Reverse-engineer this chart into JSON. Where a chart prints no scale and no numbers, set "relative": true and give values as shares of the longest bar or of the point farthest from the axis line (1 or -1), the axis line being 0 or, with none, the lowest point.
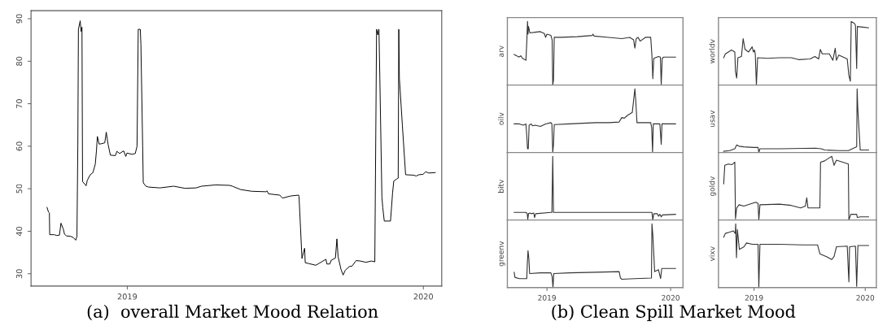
{
  "chart_data": [
    {
      "type": "line",
      "annotations": [
        "(a)  overall Market Mood Relation"
      ],
      "xlim": [
        2018.675,
        2020.062
      ],
      "ylim": [
        27.1,
        91.9
      ],
      "xticks": [
        2019,
        2020
      ],
      "yticks": [
        30,
        40,
        50,
        60,
        70,
        80,
        90
      ],
      "grid": false,
      "x": [
        2018.729,
        2018.734,
        2018.737,
        2018.738,
        2018.753,
        2018.762,
        2018.771,
        2018.776,
        2018.784,
        2018.788,
        2018.795,
        2018.809,
        2018.818,
        2018.826,
        2018.83,
        2018.833,
        2018.835,
        2018.841,
        2018.844,
        2018.847,
        2018.849,
        2018.861,
        2018.865,
        2018.875,
        2018.884,
        2018.892,
        2018.896,
        2018.899,
        2018.905,
        2018.913,
        2018.924,
        2018.929,
        2018.935,
        2018.943,
        2018.96,
        2018.965,
        2018.974,
        2018.988,
        2018.995,
        2018.999,
        2019.016,
        2019.027,
        2019.033,
        2019.037,
        2019.044,
        2019.046,
        2019.052,
        2019.054,
        2019.063,
        2019.072,
        2019.11,
        2019.157,
        2019.195,
        2019.232,
        2019.251,
        2019.298,
        2019.345,
        2019.355,
        2019.383,
        2019.421,
        2019.468,
        2019.472,
        2019.477,
        2019.515,
        2019.524,
        2019.552,
        2019.579,
        2019.58,
        2019.59,
        2019.595,
        2019.599,
        2019.601,
        2019.613,
        2019.637,
        2019.656,
        2019.671,
        2019.674,
        2019.684,
        2019.689,
        2019.703,
        2019.708,
        2019.712,
        2019.722,
        2019.729,
        2019.736,
        2019.75,
        2019.759,
        2019.773,
        2019.787,
        2019.806,
        2019.825,
        2019.836,
        2019.842,
        2019.846,
        2019.849,
        2019.85,
        2019.853,
        2019.86,
        2019.863,
        2019.868,
        2019.889,
        2019.896,
        2019.9,
        2019.91,
        2019.915,
        2019.917,
        2019.919,
        2019.929,
        2019.94,
        2019.966,
        2019.976,
        2019.985,
        2019.999,
        2020.008,
        2020.018,
        2020.04
      ],
      "series": [
        {
          "color": "#000000",
          "values": [
            45.6,
            44.5,
            44.3,
            39.2,
            39.2,
            39.0,
            39.1,
            41.9,
            40.5,
            39.3,
            38.9,
            38.8,
            38.5,
            37.9,
            38.8,
            60,
            87.5,
            89.5,
            87,
            88,
            51.7,
            50.7,
            52,
            53.3,
            53.8,
            55.8,
            59,
            62.3,
            60.5,
            60.6,
            60.8,
            63.3,
            60.5,
            57.9,
            57.8,
            58.8,
            58.3,
            58.9,
            57.6,
            58.4,
            58.1,
            58.3,
            60,
            87.5,
            87.5,
            84,
            60,
            51.4,
            50.6,
            50.4,
            50.2,
            50.6,
            50.1,
            50.2,
            50.6,
            50.9,
            50.8,
            50.6,
            49.8,
            49.4,
            49.3,
            49.5,
            48.8,
            48.5,
            47.8,
            48.3,
            48.5,
            48.2,
            33.6,
            35,
            36,
            32.6,
            32.4,
            32.0,
            32.8,
            33.4,
            32.3,
            32.3,
            33.2,
            33.7,
            38.2,
            34,
            31,
            29.7,
            30.8,
            31.7,
            31.8,
            33.1,
            33,
            32.7,
            33,
            32.8,
            87.5,
            86.2,
            87.5,
            87.5,
            76,
            48,
            45.5,
            42.4,
            42.4,
            49,
            51.8,
            52.3,
            52.5,
            87.5,
            76,
            65,
            53.3,
            53.2,
            53.0,
            53.3,
            53.4,
            54.0,
            53.7,
            53.8
          ]
        }
      ]
    },
    {
      "type": "line",
      "ylabel": "arv",
      "relative": true,
      "xlim": [
        2018.68,
        2020.1
      ],
      "xticks": [
        2019,
        2020
      ],
      "tick_labels": false,
      "annotations": [
        "(b) Clean Spill Market Mood"
      ],
      "x": [
        2018.735,
        2018.756,
        2018.773,
        2018.788,
        2018.803,
        2018.83,
        2018.837,
        2018.843,
        2018.847,
        2018.851,
        2018.862,
        2018.904,
        2018.947,
        2018.979,
        2018.989,
        2019.0,
        2019.032,
        2019.042,
        2019.047,
        2019.053,
        2019.059,
        2019.117,
        2019.244,
        2019.367,
        2019.372,
        2019.382,
        2019.499,
        2019.605,
        2019.669,
        2019.701,
        2019.711,
        2019.722,
        2019.737,
        2019.754,
        2019.796,
        2019.839,
        2019.849,
        2019.856,
        2019.864,
        2019.902,
        2019.917,
        2019.924,
        2019.932,
        2019.945,
        2019.977,
        2020.04
      ],
      "series": [
        {
          "color": "#333333",
          "values": [
            0.48,
            0.46,
            0.44,
            0.46,
            0.42,
            0.39,
            0.67,
            1,
            0.8,
            0.92,
            0.82,
            0.83,
            0.84,
            0.81,
            0.75,
            0.8,
            0.78,
            0.71,
            0,
            0.08,
            0.75,
            0.75,
            0.76,
            0.78,
            0.8,
            0.77,
            0.75,
            0.73,
            0.75,
            0.71,
            0.58,
            0.73,
            0.75,
            0.69,
            0.75,
            0.75,
            0.46,
            0.1,
            0.42,
            0.45,
            0.44,
            0.01,
            0.42,
            0.44,
            0.44,
            0.44
          ]
        }
      ]
    },
    {
      "type": "line",
      "ylabel": "oilv",
      "relative": true,
      "xlim": [
        2018.68,
        2020.1
      ],
      "xticks": [
        2019,
        2020
      ],
      "tick_labels": false,
      "x": [
        2018.735,
        2018.777,
        2018.809,
        2018.83,
        2018.837,
        2018.843,
        2018.849,
        2018.856,
        2018.873,
        2018.883,
        2018.904,
        2018.947,
        2018.989,
        2019.032,
        2019.04,
        2019.047,
        2019.053,
        2019.059,
        2019.18,
        2019.393,
        2019.499,
        2019.584,
        2019.605,
        2019.626,
        2019.648,
        2019.69,
        2019.711,
        2019.718,
        2019.728,
        2019.839,
        2019.847,
        2019.854,
        2019.86,
        2019.913,
        2019.924,
        2019.93,
        2020.04
      ],
      "series": [
        {
          "color": "#333333",
          "values": [
            0.45,
            0.45,
            0.43,
            0.45,
            0.26,
            0.06,
            0.06,
            0.43,
            0.45,
            0.42,
            0.43,
            0.41,
            0.45,
            0.47,
            0.45,
            0,
            0.13,
            0.44,
            0.45,
            0.47,
            0.47,
            0.48,
            0.55,
            0.54,
            0.58,
            0.63,
            1,
            0.82,
            0.47,
            0.47,
            0.39,
            0,
            0.45,
            0.45,
            0.13,
            0.45,
            0.45
          ]
        }
      ]
    },
    {
      "type": "line",
      "ylabel": "bitv",
      "relative": true,
      "xlim": [
        2018.68,
        2020.1
      ],
      "xticks": [
        2019,
        2020
      ],
      "tick_labels": false,
      "x": [
        2018.735,
        2018.83,
        2018.841,
        2018.845,
        2018.851,
        2018.862,
        2018.873,
        2018.894,
        2018.9,
        2018.909,
        2019.032,
        2019.04,
        2019.047,
        2019.053,
        2019.287,
        2019.711,
        2019.849,
        2019.856,
        2019.864,
        2019.892,
        2019.902,
        2019.913,
        2019.924,
        2019.934,
        2020.04
      ],
      "series": [
        {
          "color": "#333333",
          "values": [
            0.12,
            0.12,
            0.1,
            0.01,
            0.1,
            0.11,
            0.1,
            0.11,
            0.04,
            0.1,
            0.12,
            0.12,
            1,
            0.12,
            0.12,
            0.12,
            0.12,
            0,
            0.1,
            0.1,
            0.06,
            0.09,
            0.05,
            0.08,
            0.09
          ]
        }
      ]
    },
    {
      "type": "line",
      "ylabel": "greenv",
      "relative": true,
      "xlim": [
        2018.68,
        2020.1
      ],
      "xticks": [
        2019,
        2020
      ],
      "tick_labels": "x",
      "x": [
        2018.735,
        2018.741,
        2018.777,
        2018.837,
        2018.841,
        2018.847,
        2018.854,
        2018.86,
        2018.947,
        2019.032,
        2019.042,
        2019.049,
        2019.055,
        2019.18,
        2019.393,
        2019.584,
        2019.594,
        2019.605,
        2019.711,
        2019.845,
        2019.849,
        2019.856,
        2019.871,
        2019.902,
        2019.919,
        2019.928,
        2019.966,
        2020.04
      ],
      "series": [
        {
          "color": "#333333",
          "values": [
            0.24,
            0.16,
            0.14,
            0.14,
            0.36,
            0.58,
            0.45,
            0.22,
            0.23,
            0.23,
            0.17,
            0,
            0.22,
            0.23,
            0.24,
            0.25,
            0.15,
            0.13,
            0.14,
            0.15,
            1,
            0.83,
            0.25,
            0.28,
            0.14,
            0.3,
            0.3,
            0.3
          ]
        }
      ]
    },
    {
      "type": "line",
      "ylabel": "worldv",
      "relative": true,
      "xlim": [
        2018.68,
        2020.1
      ],
      "xticks": [
        2019,
        2020
      ],
      "tick_labels": false,
      "x": [
        2018.727,
        2018.742,
        2018.769,
        2018.797,
        2018.827,
        2018.833,
        2018.844,
        2018.855,
        2018.887,
        2018.902,
        2018.919,
        2018.951,
        2018.983,
        2018.994,
        2019.004,
        2019.011,
        2019.021,
        2019.032,
        2019.122,
        2019.229,
        2019.335,
        2019.4,
        2019.504,
        2019.547,
        2019.581,
        2019.596,
        2019.613,
        2019.677,
        2019.709,
        2019.73,
        2019.741,
        2019.762,
        2019.838,
        2019.853,
        2019.866,
        2019.874,
        2019.902,
        2019.912,
        2019.923,
        2019.929,
        2019.976,
        2020.03
      ],
      "series": [
        {
          "color": "#333333",
          "values": [
            0.43,
            0.49,
            0.52,
            0.55,
            0.52,
            0.21,
            0.11,
            0.43,
            0.45,
            0.73,
            0.56,
            0.52,
            0.6,
            0.52,
            0.55,
            0.49,
            0,
            0.43,
            0.42,
            0.43,
            0.43,
            0.4,
            0.41,
            0.45,
            0.41,
            0.56,
            0.49,
            0.49,
            0.39,
            0.58,
            0.39,
            0.47,
            0.41,
            0.15,
            0.06,
            1,
            0.97,
            0.94,
            0.26,
            0.92,
            0.91,
            0.9
          ]
        }
      ]
    },
    {
      "type": "line",
      "ylabel": "usav",
      "relative": true,
      "xlim": [
        2018.68,
        2020.1
      ],
      "xticks": [
        2019,
        2020
      ],
      "tick_labels": false,
      "x": [
        2018.727,
        2018.781,
        2018.827,
        2018.844,
        2018.865,
        2018.908,
        2018.994,
        2019.036,
        2019.043,
        2019.053,
        2019.229,
        2019.551,
        2019.604,
        2019.636,
        2019.763,
        2019.849,
        2019.923,
        2019.927,
        2019.933,
        2019.955,
        2020.03
      ],
      "series": [
        {
          "color": "#333333",
          "values": [
            0.02,
            0.03,
            0.06,
            0.12,
            0.1,
            0.09,
            0.08,
            0.08,
            0,
            0.06,
            0.06,
            0.07,
            0.06,
            0.04,
            0.03,
            0.03,
            0.09,
            1,
            0.69,
            0.04,
            0.04
          ]
        }
      ]
    },
    {
      "type": "line",
      "ylabel": "goldv",
      "relative": true,
      "xlim": [
        2018.68,
        2020.1
      ],
      "xticks": [
        2019,
        2020
      ],
      "tick_labels": false,
      "x": [
        2018.727,
        2018.737,
        2018.769,
        2018.801,
        2018.827,
        2018.833,
        2018.844,
        2018.865,
        2018.908,
        2019.015,
        2019.036,
        2019.043,
        2019.053,
        2019.229,
        2019.335,
        2019.419,
        2019.462,
        2019.474,
        2019.485,
        2019.592,
        2019.598,
        2019.635,
        2019.688,
        2019.699,
        2019.72,
        2019.741,
        2019.848,
        2019.853,
        2019.87,
        2019.923,
        2019.929,
        2019.955,
        2020.03
      ],
      "series": [
        {
          "color": "#333333",
          "values": [
            0.57,
            0.86,
            0.88,
            0.87,
            0.91,
            0.02,
            0.19,
            0.24,
            0.22,
            0.28,
            0.26,
            0,
            0.24,
            0.25,
            0.23,
            0.19,
            0.22,
            0.35,
            0.19,
            0.19,
            0.91,
            0.93,
            0.99,
            1,
            0.86,
            0.94,
            0.88,
            0,
            0.09,
            0.09,
            0.04,
            0.05,
            0.05
          ]
        }
      ]
    },
    {
      "type": "line",
      "ylabel": "vixv",
      "relative": true,
      "xlim": [
        2018.68,
        2020.1
      ],
      "xticks": [
        2019,
        2020
      ],
      "tick_labels": "x",
      "x": [
        2018.727,
        2018.742,
        2018.781,
        2018.814,
        2018.831,
        2018.835,
        2018.842,
        2018.85,
        2018.868,
        2018.91,
        2018.932,
        2018.985,
        2019.036,
        2019.043,
        2019.053,
        2019.229,
        2019.442,
        2019.571,
        2019.592,
        2019.656,
        2019.699,
        2019.72,
        2019.741,
        2019.838,
        2019.849,
        2019.853,
        2019.859,
        2019.912,
        2019.923,
        2019.934,
        2020.03
      ],
      "series": [
        {
          "color": "#333333",
          "values": [
            0.79,
            0.85,
            0.87,
            0.89,
            0.85,
            1,
            0.47,
            0.91,
            0.6,
            0.64,
            0.7,
            0.68,
            0.68,
            0,
            0.68,
            0.68,
            0.67,
            0.67,
            0.53,
            0.48,
            0.44,
            0.49,
            0.64,
            0.65,
            0.23,
            0.09,
            0.64,
            0.65,
            0.02,
            0.66,
            0.66
          ]
        }
      ]
    }
  ]
}
